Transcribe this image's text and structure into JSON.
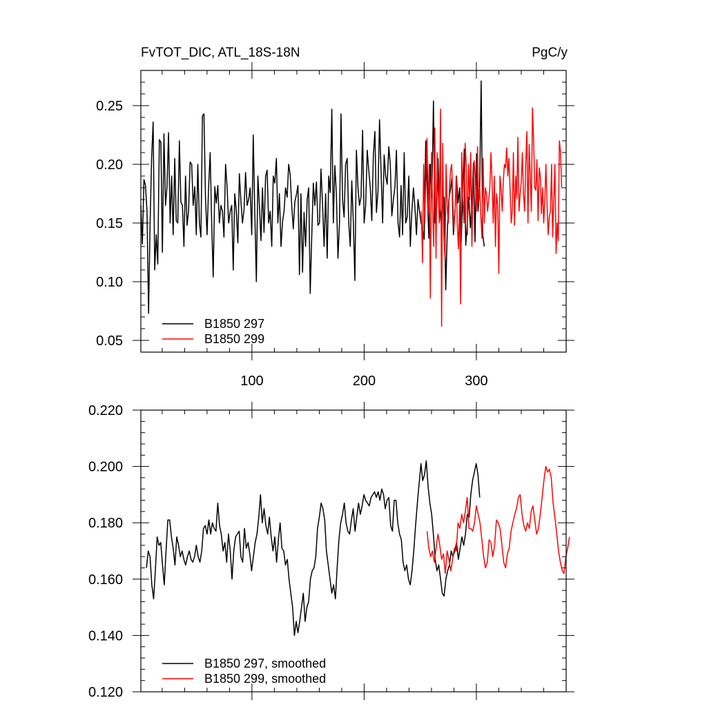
{
  "chart_data": [
    {
      "type": "line",
      "title": "FvTOT_DIC, ATL_18S-18N",
      "units": "PgC/y",
      "xlim": [
        1,
        380
      ],
      "ylim": [
        0.04,
        0.28
      ],
      "x_ticks": [
        100,
        200,
        300
      ],
      "y_ticks": [
        0.05,
        0.1,
        0.15,
        0.2,
        0.25
      ],
      "x_tick_labels": [
        "100",
        "200",
        "300"
      ],
      "y_tick_labels": [
        "0.05",
        "0.10",
        "0.15",
        "0.20",
        "0.25"
      ],
      "legend_location": "bottom-left",
      "series": [
        {
          "name": "B1850 297",
          "color": "#000000",
          "x_start": 1,
          "values": [
            0.165,
            0.132,
            0.187,
            0.182,
            0.16,
            0.073,
            0.15,
            0.205,
            0.236,
            0.11,
            0.14,
            0.115,
            0.221,
            0.219,
            0.125,
            0.226,
            0.165,
            0.181,
            0.227,
            0.15,
            0.19,
            0.14,
            0.205,
            0.152,
            0.15,
            0.22,
            0.168,
            0.165,
            0.13,
            0.19,
            0.148,
            0.16,
            0.202,
            0.2,
            0.165,
            0.181,
            0.14,
            0.2,
            0.15,
            0.138,
            0.241,
            0.243,
            0.17,
            0.14,
            0.18,
            0.21,
            0.15,
            0.104,
            0.181,
            0.167,
            0.182,
            0.15,
            0.165,
            0.16,
            0.138,
            0.2,
            0.181,
            0.15,
            0.16,
            0.165,
            0.11,
            0.175,
            0.16,
            0.133,
            0.192,
            0.168,
            0.15,
            0.161,
            0.193,
            0.165,
            0.17,
            0.18,
            0.14,
            0.225,
            0.16,
            0.1,
            0.19,
            0.165,
            0.135,
            0.18,
            0.142,
            0.19,
            0.195,
            0.15,
            0.16,
            0.13,
            0.19,
            0.184,
            0.205,
            0.15,
            0.175,
            0.13,
            0.151,
            0.16,
            0.18,
            0.172,
            0.2,
            0.191,
            0.164,
            0.145,
            0.168,
            0.174,
            0.182,
            0.106,
            0.175,
            0.108,
            0.159,
            0.13,
            0.17,
            0.18,
            0.09,
            0.14,
            0.184,
            0.165,
            0.185,
            0.148,
            0.15,
            0.196,
            0.166,
            0.13,
            0.175,
            0.12,
            0.19,
            0.176,
            0.247,
            0.15,
            0.199,
            0.175,
            0.12,
            0.15,
            0.243,
            0.17,
            0.155,
            0.2,
            0.205,
            0.15,
            0.13,
            0.186,
            0.15,
            0.101,
            0.212,
            0.18,
            0.165,
            0.172,
            0.229,
            0.15,
            0.165,
            0.212,
            0.195,
            0.18,
            0.152,
            0.208,
            0.228,
            0.159,
            0.177,
            0.238,
            0.195,
            0.15,
            0.208,
            0.19,
            0.183,
            0.215,
            0.2,
            0.156,
            0.17,
            0.181,
            0.212,
            0.15,
            0.138,
            0.182,
            0.14,
            0.21,
            0.15,
            0.155,
            0.19,
            0.13,
            0.16,
            0.18,
            0.163,
            0.14,
            0.17,
            0.16,
            0.15,
            0.145,
            0.136,
            0.22,
            0.178,
            0.137,
            0.2,
            0.172,
            0.254,
            0.15,
            0.16,
            0.205,
            0.162,
            0.15,
            0.163,
            0.172,
            0.093,
            0.142,
            0.17,
            0.178,
            0.188,
            0.14,
            0.16,
            0.19,
            0.167,
            0.18,
            0.133,
            0.17,
            0.213,
            0.131,
            0.15,
            0.172,
            0.146,
            0.168,
            0.201,
            0.134,
            0.209,
            0.16,
            0.18,
            0.271,
            0.14,
            0.13
          ],
          "x_end": 307
        },
        {
          "name": "B1850 299",
          "color": "#ff0000",
          "x_start": 251,
          "values": [
            0.16,
            0.116,
            0.2,
            0.15,
            0.19,
            0.222,
            0.16,
            0.2,
            0.086,
            0.21,
            0.16,
            0.13,
            0.231,
            0.12,
            0.21,
            0.18,
            0.15,
            0.247,
            0.062,
            0.218,
            0.14,
            0.12,
            0.2,
            0.164,
            0.15,
            0.18,
            0.195,
            0.2,
            0.17,
            0.145,
            0.16,
            0.19,
            0.15,
            0.128,
            0.165,
            0.081,
            0.21,
            0.17,
            0.15,
            0.218,
            0.2,
            0.14,
            0.2,
            0.17,
            0.21,
            0.13,
            0.18,
            0.203,
            0.19,
            0.16,
            0.215,
            0.167,
            0.18,
            0.155,
            0.137,
            0.205,
            0.15,
            0.18,
            0.175,
            0.16,
            0.17,
            0.18,
            0.21,
            0.186,
            0.15,
            0.19,
            0.13,
            0.175,
            0.165,
            0.107,
            0.19,
            0.18,
            0.16,
            0.186,
            0.2,
            0.197,
            0.214,
            0.19,
            0.205,
            0.18,
            0.15,
            0.16,
            0.21,
            0.148,
            0.19,
            0.171,
            0.223,
            0.16,
            0.175,
            0.185,
            0.21,
            0.175,
            0.16,
            0.202,
            0.228,
            0.15,
            0.217,
            0.19,
            0.16,
            0.248,
            0.22,
            0.18,
            0.178,
            0.204,
            0.152,
            0.197,
            0.19,
            0.158,
            0.18,
            0.15,
            0.17,
            0.2,
            0.165,
            0.14,
            0.155,
            0.16,
            0.2,
            0.138,
            0.17,
            0.2,
            0.124,
            0.15,
            0.135,
            0.22,
            0.21,
            0.18
          ],
          "x_end": 376
        }
      ]
    },
    {
      "type": "line",
      "title": "",
      "xlim": [
        1,
        380
      ],
      "ylim": [
        0.12,
        0.22
      ],
      "x_ticks": [
        100,
        200,
        300
      ],
      "y_ticks": [
        0.12,
        0.14,
        0.16,
        0.18,
        0.2,
        0.22
      ],
      "y_tick_labels": [
        "0.120",
        "0.140",
        "0.160",
        "0.180",
        "0.200",
        "0.220"
      ],
      "legend_location": "bottom-left",
      "series": [
        {
          "name": "B1850 297, smoothed",
          "color": "#000000",
          "x_start": 6,
          "values": [
            0.164,
            0.17,
            0.168,
            0.158,
            0.153,
            0.163,
            0.175,
            0.172,
            0.173,
            0.165,
            0.158,
            0.17,
            0.181,
            0.181,
            0.175,
            0.171,
            0.165,
            0.175,
            0.172,
            0.168,
            0.17,
            0.167,
            0.165,
            0.168,
            0.17,
            0.167,
            0.166,
            0.168,
            0.172,
            0.168,
            0.166,
            0.17,
            0.178,
            0.179,
            0.176,
            0.181,
            0.176,
            0.18,
            0.178,
            0.177,
            0.187,
            0.179,
            0.176,
            0.17,
            0.173,
            0.166,
            0.176,
            0.17,
            0.16,
            0.17,
            0.175,
            0.176,
            0.177,
            0.168,
            0.166,
            0.178,
            0.171,
            0.173,
            0.169,
            0.163,
            0.168,
            0.173,
            0.176,
            0.182,
            0.19,
            0.18,
            0.185,
            0.179,
            0.176,
            0.182,
            0.175,
            0.17,
            0.175,
            0.166,
            0.174,
            0.18,
            0.171,
            0.17,
            0.165,
            0.167,
            0.16,
            0.155,
            0.15,
            0.14,
            0.145,
            0.141,
            0.145,
            0.15,
            0.155,
            0.145,
            0.15,
            0.152,
            0.16,
            0.163,
            0.164,
            0.168,
            0.178,
            0.182,
            0.187,
            0.185,
            0.181,
            0.17,
            0.165,
            0.16,
            0.155,
            0.158,
            0.153,
            0.164,
            0.174,
            0.18,
            0.183,
            0.187,
            0.18,
            0.177,
            0.176,
            0.181,
            0.185,
            0.177,
            0.182,
            0.187,
            0.183,
            0.186,
            0.19,
            0.188,
            0.187,
            0.186,
            0.189,
            0.19,
            0.191,
            0.189,
            0.191,
            0.188,
            0.192,
            0.19,
            0.185,
            0.188,
            0.189,
            0.179,
            0.177,
            0.188,
            0.188,
            0.18,
            0.176,
            0.174,
            0.166,
            0.163,
            0.165,
            0.16,
            0.158,
            0.163,
            0.17,
            0.179,
            0.187,
            0.194,
            0.201,
            0.195,
            0.197,
            0.202,
            0.193,
            0.187,
            0.183,
            0.176,
            0.167,
            0.163,
            0.165,
            0.16,
            0.155,
            0.154,
            0.16,
            0.163,
            0.165,
            0.17,
            0.168,
            0.17,
            0.173,
            0.167,
            0.171,
            0.175,
            0.172,
            0.176,
            0.183,
            0.182,
            0.19,
            0.195,
            0.198,
            0.201,
            0.197,
            0.189
          ],
          "x_end": 303
        },
        {
          "name": "B1850 299, smoothed",
          "color": "#ff0000",
          "x_start": 256,
          "values": [
            0.177,
            0.171,
            0.168,
            0.17,
            0.166,
            0.171,
            0.176,
            0.172,
            0.167,
            0.169,
            0.162,
            0.17,
            0.167,
            0.163,
            0.167,
            0.171,
            0.17,
            0.18,
            0.178,
            0.183,
            0.18,
            0.184,
            0.189,
            0.178,
            0.178,
            0.177,
            0.18,
            0.186,
            0.183,
            0.18,
            0.174,
            0.168,
            0.164,
            0.166,
            0.174,
            0.173,
            0.168,
            0.172,
            0.181,
            0.18,
            0.178,
            0.172,
            0.166,
            0.164,
            0.169,
            0.171,
            0.177,
            0.18,
            0.183,
            0.185,
            0.189,
            0.19,
            0.183,
            0.179,
            0.177,
            0.18,
            0.178,
            0.184,
            0.186,
            0.181,
            0.176,
            0.178,
            0.183,
            0.189,
            0.195,
            0.2,
            0.198,
            0.199,
            0.196,
            0.187,
            0.182,
            0.176,
            0.17,
            0.166,
            0.163,
            0.162,
            0.168,
            0.171,
            0.175
          ],
          "x_end": 383
        }
      ]
    }
  ]
}
